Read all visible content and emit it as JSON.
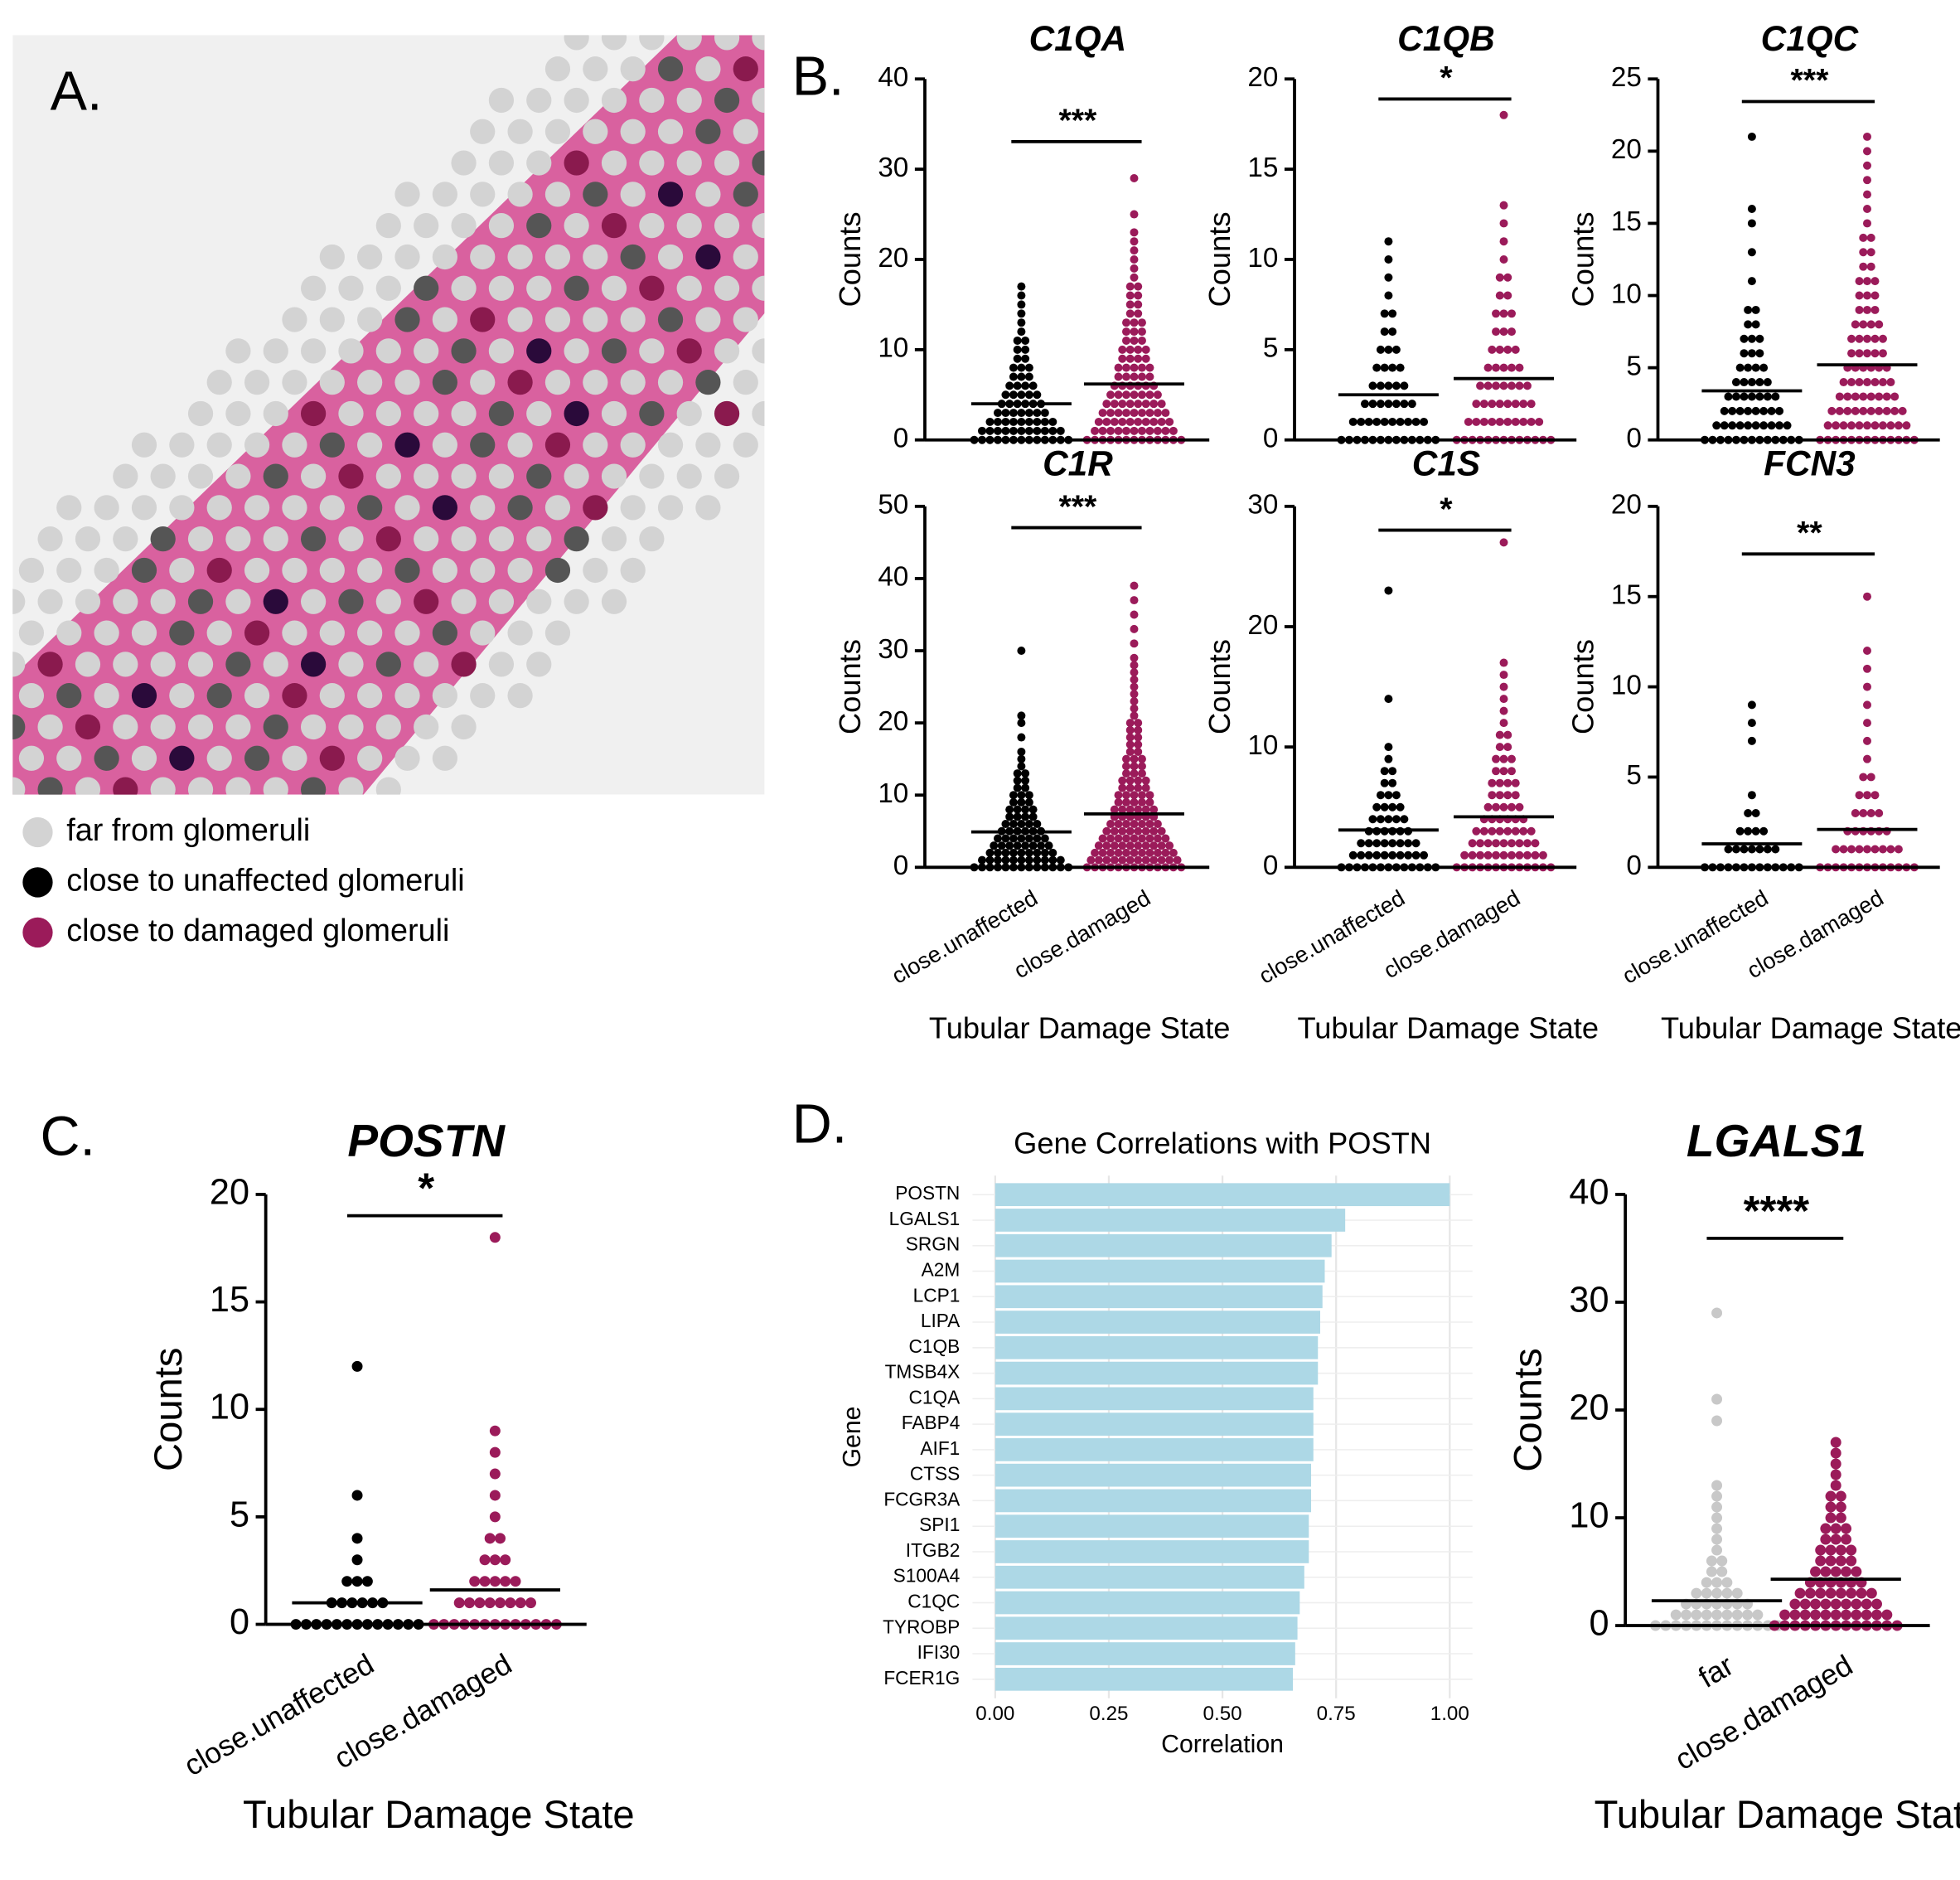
{
  "panel_labels": {
    "a": "A.",
    "b": "B.",
    "c": "C.",
    "d": "D."
  },
  "legend": [
    {
      "label": "far from glomeruli",
      "color": "#d3d3d3"
    },
    {
      "label": "close to unaffected glomeruli",
      "color": "#000000"
    },
    {
      "label": "close to damaged glomeruli",
      "color": "#9b1b5a"
    }
  ],
  "chart_data": [
    {
      "type": "dot",
      "title": "C1QA",
      "ylabel": "Counts",
      "ylim": [
        0,
        40
      ],
      "yticks": [
        0,
        10,
        20,
        30,
        40
      ],
      "significance": "***",
      "groups": [
        {
          "color": "#000000",
          "mean": 4,
          "values": [
            0,
            1,
            2,
            3,
            4,
            5,
            6,
            7,
            8,
            9,
            10,
            11,
            12,
            13,
            14,
            15,
            16,
            17
          ]
        },
        {
          "color": "#9b1b5a",
          "mean": 6.2,
          "values": [
            0,
            1,
            2,
            3,
            4,
            5,
            6,
            7,
            8,
            9,
            10,
            11,
            12,
            13,
            14,
            15,
            16,
            17,
            18,
            19,
            20,
            21,
            22,
            23,
            25,
            29
          ]
        }
      ]
    },
    {
      "type": "dot",
      "title": "C1QB",
      "ylabel": "Counts",
      "ylim": [
        0,
        20
      ],
      "yticks": [
        0,
        5,
        10,
        15,
        20
      ],
      "significance": "*",
      "groups": [
        {
          "color": "#000000",
          "mean": 2.5,
          "values": [
            0,
            1,
            2,
            3,
            4,
            5,
            6,
            7,
            8,
            9,
            10,
            11
          ]
        },
        {
          "color": "#9b1b5a",
          "mean": 3.4,
          "values": [
            0,
            1,
            2,
            3,
            4,
            5,
            6,
            7,
            8,
            9,
            10,
            11,
            12,
            13,
            18
          ]
        }
      ]
    },
    {
      "type": "dot",
      "title": "C1QC",
      "ylabel": "Counts",
      "ylim": [
        0,
        25
      ],
      "yticks": [
        0,
        5,
        10,
        15,
        20,
        25
      ],
      "significance": "***",
      "groups": [
        {
          "color": "#000000",
          "mean": 3.4,
          "values": [
            0,
            1,
            2,
            3,
            4,
            5,
            6,
            7,
            8,
            9,
            11,
            13,
            15,
            16,
            21
          ]
        },
        {
          "color": "#9b1b5a",
          "mean": 5.2,
          "values": [
            0,
            1,
            2,
            3,
            4,
            5,
            6,
            7,
            8,
            9,
            10,
            11,
            12,
            13,
            14,
            15,
            16,
            17,
            18,
            19,
            20,
            21
          ]
        }
      ]
    },
    {
      "type": "dot",
      "title": "C1R",
      "ylabel": "Counts",
      "xlabel": "Tubular Damage State",
      "categories": [
        "close.unaffected",
        "close.damaged"
      ],
      "ylim": [
        0,
        50
      ],
      "yticks": [
        0,
        10,
        20,
        30,
        40,
        50
      ],
      "significance": "***",
      "groups": [
        {
          "color": "#000000",
          "mean": 4.9,
          "values": [
            0,
            1,
            2,
            3,
            4,
            5,
            6,
            7,
            8,
            9,
            10,
            11,
            12,
            13,
            14,
            15,
            16,
            18,
            20,
            21,
            30
          ]
        },
        {
          "color": "#9b1b5a",
          "mean": 7.4,
          "values": [
            0,
            1,
            2,
            3,
            4,
            5,
            6,
            7,
            8,
            9,
            10,
            11,
            12,
            13,
            14,
            15,
            16,
            17,
            18,
            19,
            20,
            21,
            22,
            23,
            24,
            25,
            26,
            27,
            28,
            29,
            31,
            33,
            35,
            37,
            39
          ]
        }
      ]
    },
    {
      "type": "dot",
      "title": "C1S",
      "ylabel": "Counts",
      "xlabel": "Tubular Damage State",
      "categories": [
        "close.unaffected",
        "close.damaged"
      ],
      "ylim": [
        0,
        30
      ],
      "yticks": [
        0,
        10,
        20,
        30
      ],
      "significance": "*",
      "groups": [
        {
          "color": "#000000",
          "mean": 3.1,
          "values": [
            0,
            1,
            2,
            3,
            4,
            5,
            6,
            7,
            8,
            9,
            10,
            14,
            23
          ]
        },
        {
          "color": "#9b1b5a",
          "mean": 4.2,
          "values": [
            0,
            1,
            2,
            3,
            4,
            5,
            6,
            7,
            8,
            9,
            10,
            11,
            12,
            13,
            14,
            15,
            16,
            17,
            27
          ]
        }
      ]
    },
    {
      "type": "dot",
      "title": "FCN3",
      "ylabel": "Counts",
      "xlabel": "Tubular Damage State",
      "categories": [
        "close.unaffected",
        "close.damaged"
      ],
      "ylim": [
        0,
        20
      ],
      "yticks": [
        0,
        5,
        10,
        15,
        20
      ],
      "significance": "**",
      "groups": [
        {
          "color": "#000000",
          "mean": 1.3,
          "values": [
            0,
            1,
            2,
            3,
            4,
            7,
            8,
            9
          ]
        },
        {
          "color": "#9b1b5a",
          "mean": 2.1,
          "values": [
            0,
            1,
            2,
            3,
            4,
            5,
            6,
            7,
            8,
            9,
            10,
            11,
            12,
            15
          ]
        }
      ]
    },
    {
      "type": "dot",
      "title": "POSTN",
      "ylabel": "Counts",
      "xlabel": "Tubular Damage State",
      "categories": [
        "close.unaffected",
        "close.damaged"
      ],
      "ylim": [
        0,
        20
      ],
      "yticks": [
        0,
        5,
        10,
        15,
        20
      ],
      "significance": "*",
      "groups": [
        {
          "color": "#000000",
          "mean": 1.0,
          "values": [
            0,
            1,
            2,
            3,
            4,
            6,
            12
          ]
        },
        {
          "color": "#9b1b5a",
          "mean": 1.6,
          "values": [
            0,
            1,
            2,
            3,
            4,
            5,
            6,
            7,
            8,
            9,
            18
          ]
        }
      ]
    },
    {
      "type": "barh",
      "title": "Gene Correlations with POSTN",
      "xlabel": "Correlation",
      "ylabel": "Gene",
      "color": "#add8e6",
      "grid": true,
      "categories": [
        "POSTN",
        "LGALS1",
        "SRGN",
        "A2M",
        "LCP1",
        "LIPA",
        "C1QB",
        "TMSB4X",
        "C1QA",
        "FABP4",
        "AIF1",
        "CTSS",
        "FCGR3A",
        "SPI1",
        "ITGB2",
        "S100A4",
        "C1QC",
        "TYROBP",
        "IFI30",
        "FCER1G"
      ],
      "values": [
        1.0,
        0.77,
        0.74,
        0.725,
        0.72,
        0.715,
        0.71,
        0.71,
        0.7,
        0.7,
        0.7,
        0.695,
        0.695,
        0.69,
        0.69,
        0.68,
        0.67,
        0.665,
        0.66,
        0.655
      ],
      "xlim": [
        -0.05,
        1.05
      ],
      "xticks": [
        {
          "value": 0,
          "label": "0.00"
        },
        {
          "value": 0.25,
          "label": "0.25"
        },
        {
          "value": 0.5,
          "label": "0.50"
        },
        {
          "value": 0.75,
          "label": "0.75"
        },
        {
          "value": 1,
          "label": "1.00"
        }
      ]
    },
    {
      "type": "dot",
      "title": "LGALS1",
      "ylabel": "Counts",
      "xlabel": "Tubular Damage State",
      "categories": [
        "far",
        "close.damaged"
      ],
      "ylim": [
        0,
        40
      ],
      "yticks": [
        0,
        10,
        20,
        30,
        40
      ],
      "significance": "****",
      "groups": [
        {
          "color": "#c8c8c8",
          "mean": 2.3,
          "values": [
            0,
            1,
            2,
            3,
            4,
            5,
            6,
            7,
            8,
            9,
            10,
            11,
            12,
            13,
            19,
            21,
            29
          ]
        },
        {
          "color": "#9b1b5a",
          "mean": 4.3,
          "values": [
            0,
            1,
            2,
            3,
            4,
            5,
            6,
            7,
            8,
            9,
            10,
            11,
            12,
            13,
            14,
            15,
            16,
            17
          ]
        }
      ]
    }
  ]
}
